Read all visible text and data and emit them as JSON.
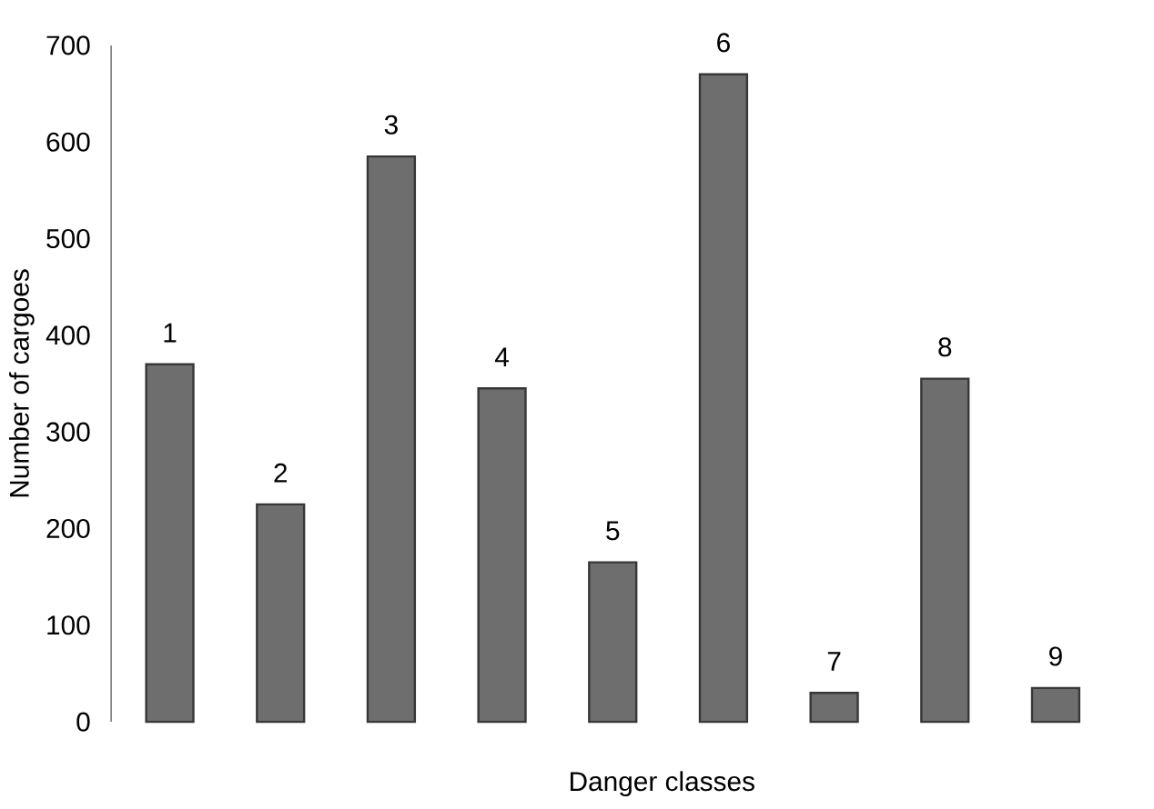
{
  "chart_data": {
    "type": "bar",
    "xlabel": "Danger classes",
    "ylabel": "Number of cargoes",
    "categories": [
      "1",
      "2",
      "3",
      "4",
      "5",
      "6",
      "7",
      "8",
      "9"
    ],
    "values": [
      370,
      225,
      585,
      345,
      165,
      670,
      30,
      355,
      35
    ],
    "color": "#6e6e6e",
    "ylim": [
      0,
      700
    ],
    "yticks": [
      0,
      100,
      200,
      300,
      400,
      500,
      600,
      700
    ],
    "grid": false
  }
}
